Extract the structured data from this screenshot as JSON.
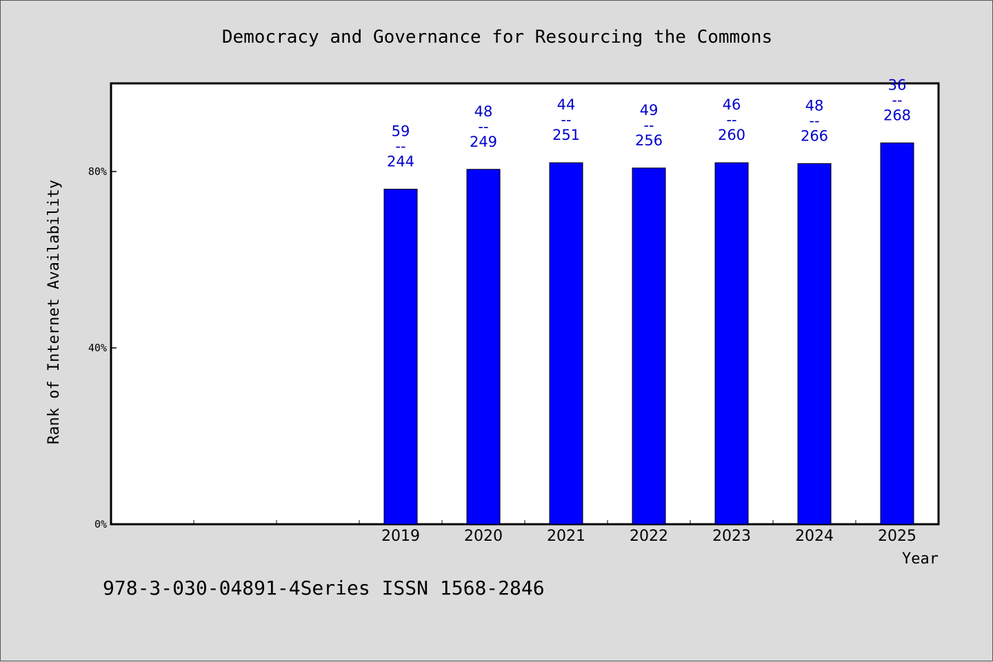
{
  "chart_data": {
    "type": "bar",
    "title": "Democracy and Governance for Resourcing the Commons",
    "xlabel": "Year",
    "ylabel": "Rank of Internet Availability",
    "categories": [
      "",
      "",
      "",
      "2019",
      "2020",
      "2021",
      "2022",
      "2023",
      "2024",
      "2025"
    ],
    "values": [
      null,
      null,
      null,
      76,
      80.5,
      82,
      80.8,
      82,
      81.8,
      86.5
    ],
    "bar_labels": [
      null,
      null,
      null,
      {
        "top": "59",
        "sep": "--",
        "bottom": "244"
      },
      {
        "top": "48",
        "sep": "--",
        "bottom": "249"
      },
      {
        "top": "44",
        "sep": "--",
        "bottom": "251"
      },
      {
        "top": "49",
        "sep": "--",
        "bottom": "256"
      },
      {
        "top": "46",
        "sep": "--",
        "bottom": "260"
      },
      {
        "top": "48",
        "sep": "--",
        "bottom": "266"
      },
      {
        "top": "36",
        "sep": "--",
        "bottom": "268"
      }
    ],
    "ylim": [
      0,
      100
    ],
    "yticks": [
      0,
      40,
      80
    ],
    "ytick_labels": [
      "0%",
      "40%",
      "80%"
    ],
    "grid": false,
    "legend": "none",
    "colors": {
      "bar": "#0000ff",
      "label": "#0000cc",
      "background": "#dcdcdc",
      "plot": "#ffffff"
    }
  },
  "footer": {
    "text": "978-3-030-04891-4Series ISSN 1568-2846"
  }
}
